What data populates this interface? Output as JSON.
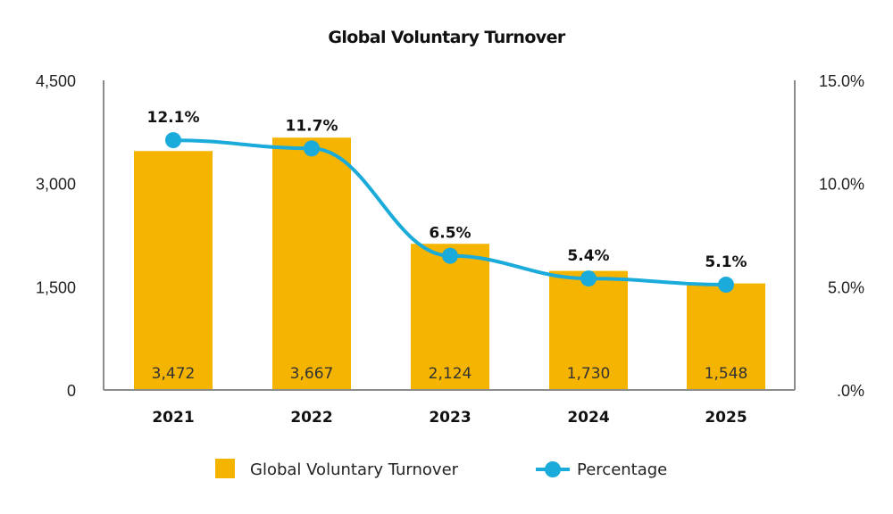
{
  "chart_data": {
    "type": "bar",
    "title": "Global Voluntary Turnover",
    "categories": [
      "2021",
      "2022",
      "2023",
      "2024",
      "2025"
    ],
    "series": [
      {
        "name": "Global Voluntary Turnover",
        "type": "bar",
        "axis": "left",
        "values": [
          3472,
          3667,
          2124,
          1730,
          1548
        ],
        "value_labels": [
          "3,472",
          "3,667",
          "2,124",
          "1,730",
          "1,548"
        ]
      },
      {
        "name": "Percentage",
        "type": "line",
        "axis": "right",
        "values": [
          12.1,
          11.7,
          6.5,
          5.4,
          5.1
        ],
        "value_labels": [
          "12.1%",
          "11.7%",
          "6.5%",
          "5.4%",
          "5.1%"
        ]
      }
    ],
    "ylim_left": [
      0,
      4500
    ],
    "yticks_left": [
      "0",
      "1,500",
      "3,000",
      "4,500"
    ],
    "ylim_right": [
      0,
      15
    ],
    "yticks_right": [
      ".0%",
      "5.0%",
      "10.0%",
      "15.0%"
    ],
    "grid": false,
    "legend": "bottom",
    "colors": {
      "bar": "#F5B400",
      "line": "#1AABDB",
      "axis": "#8c8c8c"
    }
  }
}
